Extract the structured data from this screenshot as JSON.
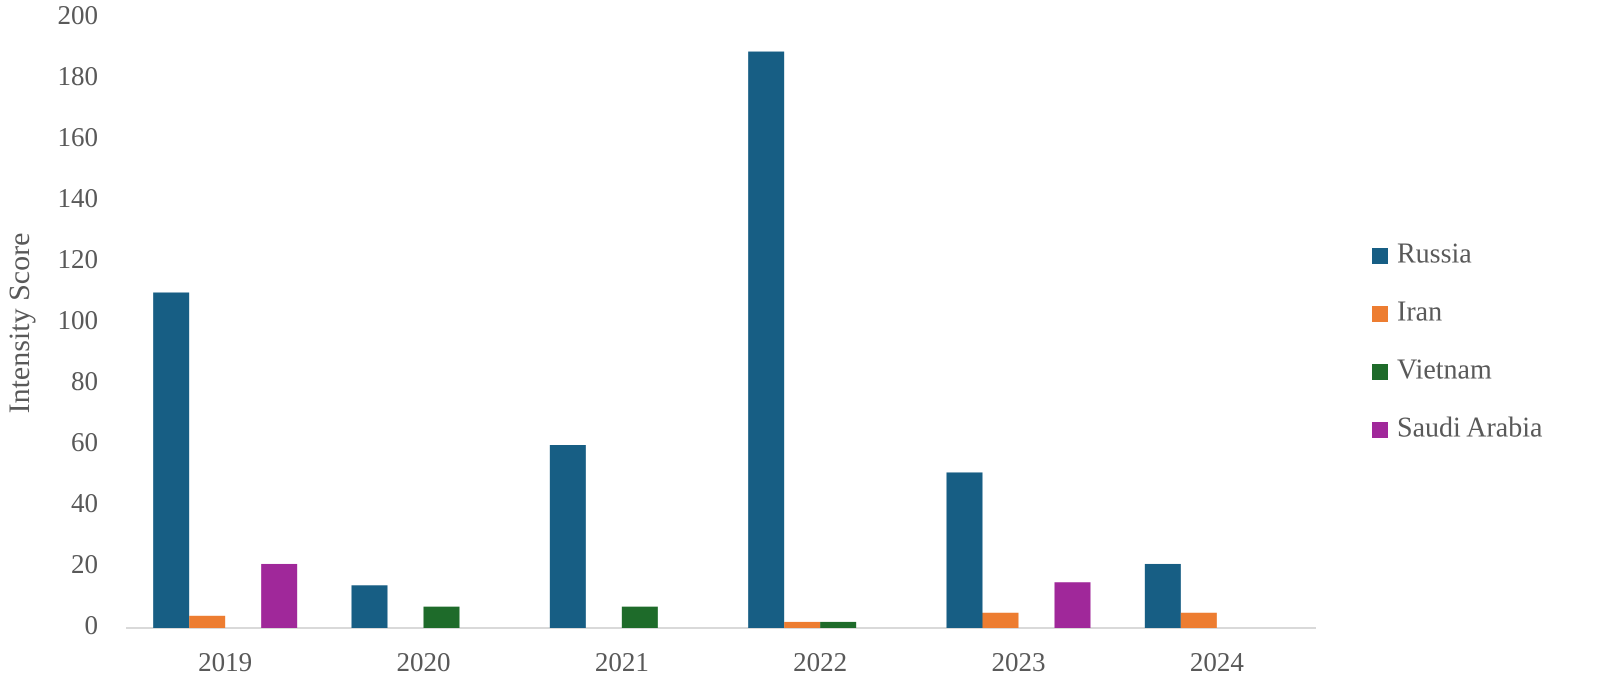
{
  "chart_data": {
    "type": "bar",
    "y_label": "Intensity Score",
    "categories": [
      "2019",
      "2020",
      "2021",
      "2022",
      "2023",
      "2024"
    ],
    "series": [
      {
        "name": "Russia",
        "color": "#175e84",
        "values": [
          110,
          14,
          60,
          189,
          51,
          21
        ]
      },
      {
        "name": "Iran",
        "color": "#ed7d31",
        "values": [
          4,
          0,
          0,
          2,
          5,
          5
        ]
      },
      {
        "name": "Vietnam",
        "color": "#1e6b2a",
        "values": [
          0,
          7,
          7,
          2,
          0,
          0
        ]
      },
      {
        "name": "Saudi Arabia",
        "color": "#a0289a",
        "values": [
          21,
          0,
          0,
          0,
          15,
          0
        ]
      }
    ],
    "ylim": [
      0,
      200
    ],
    "yticks": [
      0,
      20,
      40,
      60,
      80,
      100,
      120,
      140,
      160,
      180,
      200
    ],
    "grid": false,
    "legend": "right"
  }
}
